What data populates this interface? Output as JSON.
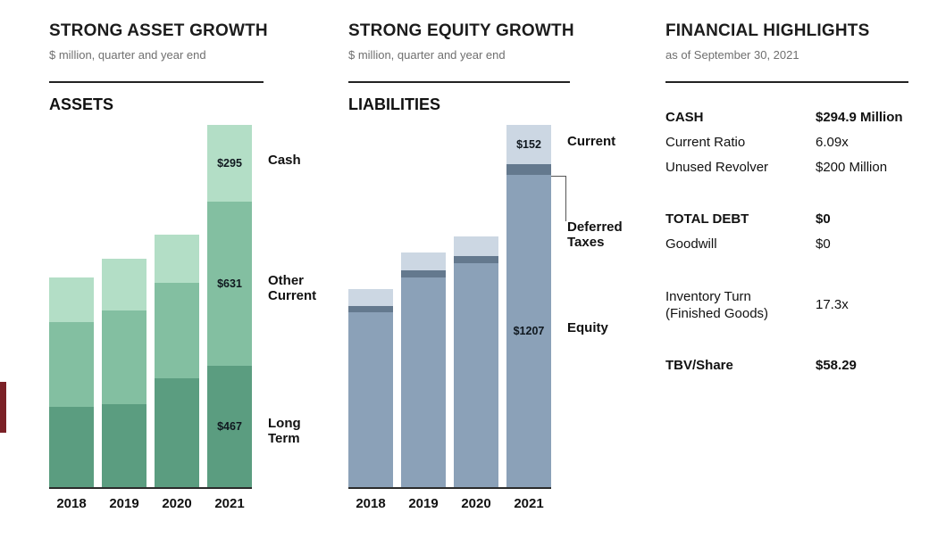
{
  "accent_color": "#7b2127",
  "panels": {
    "assets": {
      "title": "STRONG ASSET GROWTH",
      "subtitle": "$ million, quarter and year end"
    },
    "liabilities": {
      "title": "STRONG EQUITY GROWTH",
      "subtitle": "$ million, quarter and year end"
    },
    "highlights": {
      "title": "FINANCIAL HIGHLIGHTS",
      "subtitle": "as of September 30, 2021",
      "rows": [
        {
          "label": "CASH",
          "value": "$294.9 Million",
          "bold": true
        },
        {
          "label": "Current Ratio",
          "value": "6.09x"
        },
        {
          "label": "Unused Revolver",
          "value": "$200 Million"
        },
        {
          "label": "TOTAL DEBT",
          "value": "$0",
          "bold": true,
          "gap_before": true
        },
        {
          "label": "Goodwill",
          "value": "$0"
        },
        {
          "label": "Inventory Turn\n(Finished Goods)",
          "value": "17.3x",
          "gap_before": true
        },
        {
          "label": "TBV/Share",
          "value": "$58.29",
          "bold": true,
          "gap_before": true
        }
      ]
    }
  },
  "chart_data": [
    {
      "type": "bar",
      "stacked": true,
      "title": "ASSETS",
      "units": "$ million",
      "categories": [
        "2018",
        "2019",
        "2020",
        "2021"
      ],
      "series": [
        {
          "name": "Cash",
          "color": "#b3dec6",
          "values": [
            170,
            200,
            185,
            295
          ],
          "bar_label": "$295",
          "legend": "Cash"
        },
        {
          "name": "Other Current",
          "color": "#83bfa1",
          "values": [
            325,
            360,
            365,
            631
          ],
          "bar_label": "$631",
          "legend": "Other\nCurrent"
        },
        {
          "name": "Long Term",
          "color": "#5b9d80",
          "values": [
            310,
            320,
            420,
            467
          ],
          "bar_label": "$467",
          "legend": "Long\nTerm"
        }
      ],
      "value_labels_on": "2021",
      "ylim": [
        0,
        1400
      ],
      "grid": false,
      "legend_position": "right"
    },
    {
      "type": "bar",
      "stacked": true,
      "title": "LIABILITIES",
      "units": "$ million",
      "categories": [
        "2018",
        "2019",
        "2020",
        "2021"
      ],
      "series": [
        {
          "name": "Current",
          "color": "#ccd7e3",
          "values": [
            65,
            70,
            77,
            152
          ],
          "bar_label": "$152",
          "legend": "Current"
        },
        {
          "name": "Deferred Taxes",
          "color": "#64798e",
          "values": [
            25,
            27,
            28,
            40
          ],
          "legend": "Deferred\nTaxes",
          "legend_dy": 68
        },
        {
          "name": "Equity",
          "color": "#8ba1b8",
          "values": [
            675,
            810,
            865,
            1207
          ],
          "bar_label": "$1207",
          "legend": "Equity"
        }
      ],
      "value_labels_on": "2021",
      "ylim": [
        0,
        1400
      ],
      "grid": false,
      "legend_position": "right"
    }
  ]
}
